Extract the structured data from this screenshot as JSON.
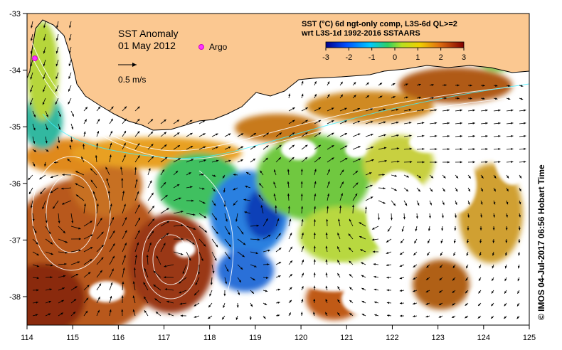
{
  "map": {
    "title": "SST Anomaly",
    "date": "01 May 2012",
    "argo_label": "Argo",
    "velocity_scale_label": "0.5 m/s",
    "caption": "© IMOS 04-Jul-2017 06:56 Hobart Time",
    "legend": {
      "line1": "SST (°C) 6d ngt-only comp, L3S-6d QL>=2",
      "line2": "wrt L3S-1d 1992-2016 SSTAARS",
      "ticks": [
        "-3",
        "-2",
        "-1",
        "0",
        "1",
        "2",
        "3"
      ],
      "range": [
        -3,
        3
      ]
    },
    "lon_ticks": [
      "114",
      "115",
      "116",
      "117",
      "118",
      "119",
      "120",
      "121",
      "122",
      "123",
      "124",
      "125"
    ],
    "lat_ticks": [
      "-33",
      "-34",
      "-35",
      "-36",
      "-37",
      "-38"
    ],
    "colors": {
      "land": "#fbc891",
      "coast": "#000000",
      "warm": "#c0661a",
      "hot": "#8a2a0c",
      "neutral": "#6cc640",
      "cool": "#1c8fe0",
      "cold": "#0a3db0",
      "argo": "#ff33ff",
      "contour": "#ffffff",
      "contour_cyan": "#3ff0ff"
    }
  }
}
